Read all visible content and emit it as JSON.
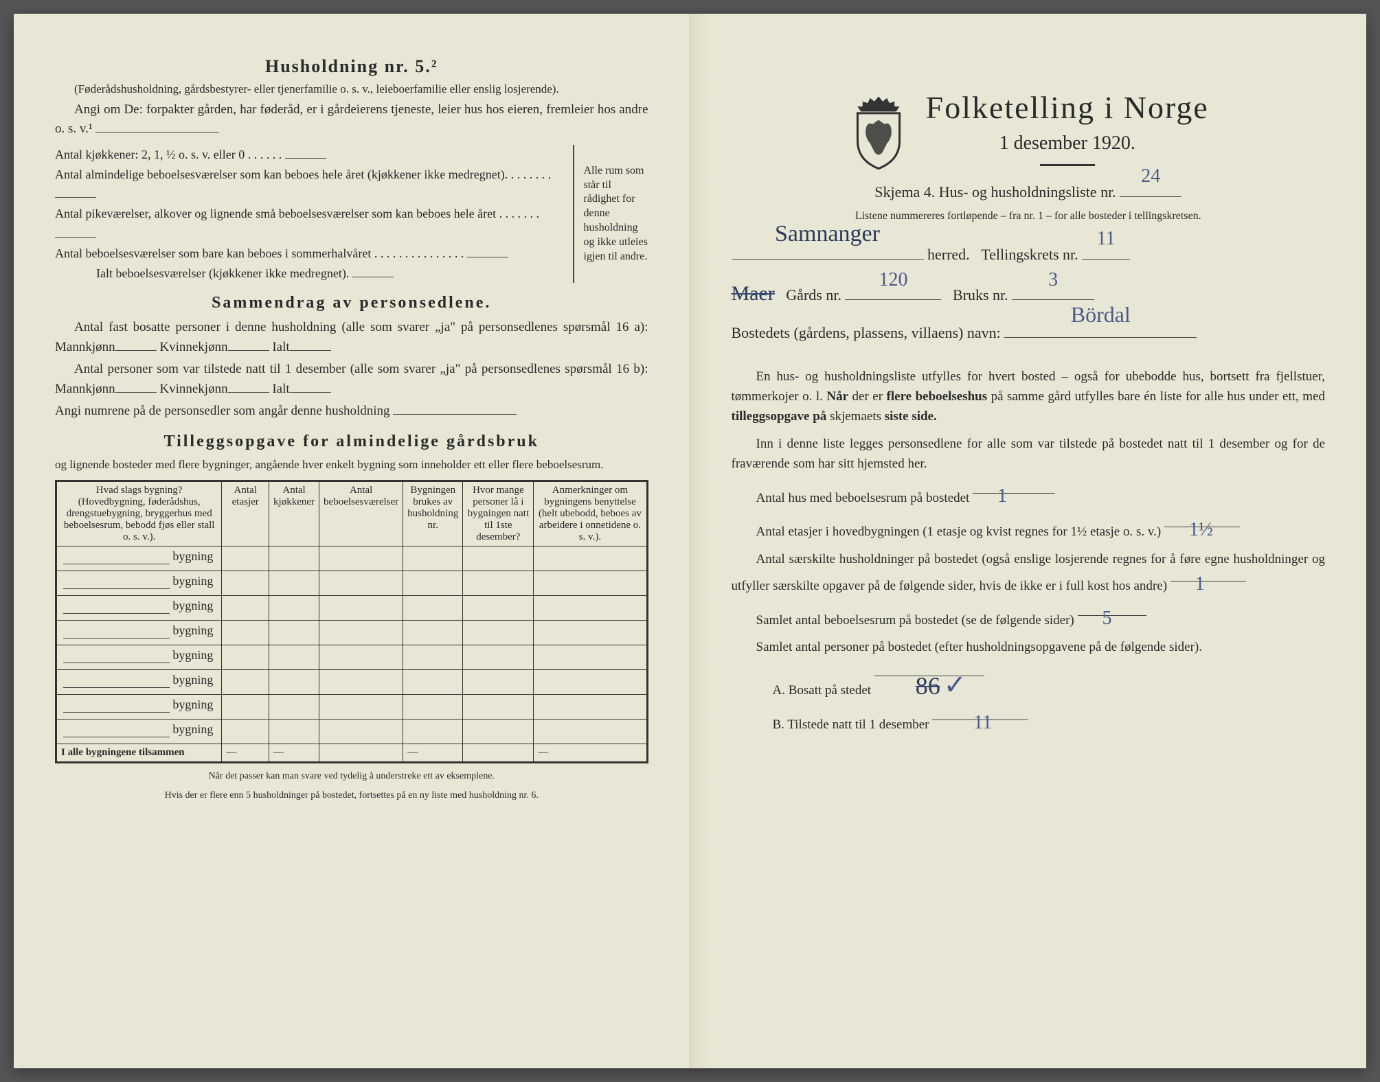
{
  "left": {
    "hh5_title": "Husholdning nr. 5.²",
    "hh5_sub": "(Føderådshusholdning, gårdsbestyrer- eller tjenerfamilie o. s. v., leieboerfamilie eller enslig losjerende).",
    "hh5_angi": "Angi om De: forpakter gården, har føderåd, er i gårdeierens tjeneste, leier hus hos eieren, fremleier hos andre o. s. v.¹",
    "kjokken_label": "Antal kjøkkener: 2, 1, ½ o. s. v. eller 0 . . . . . .",
    "rooms": [
      "Antal almindelige beboelsesværelser som kan beboes hele året (kjøkkener ikke medregnet). . . . . . . .",
      "Antal pikeværelser, alkover og lignende små beboelsesværelser som kan beboes hele året . . . . . . .",
      "Antal beboelsesværelser som bare kan beboes i sommerhalvåret . . . . . . . . . . . . . . .",
      "Ialt beboelsesværelser (kjøkkener ikke medregnet)."
    ],
    "brace_note": "Alle rum som står til rådighet for denne husholdning og ikke utleies igjen til andre.",
    "sammendrag_title": "Sammendrag av personsedlene.",
    "sd_line1": "Antal fast bosatte personer i denne husholdning (alle som svarer „ja\" på personsedlenes spørsmål 16 a): Mannkjønn",
    "sd_kvinne": "Kvinnekjønn",
    "sd_ialt": "Ialt",
    "sd_line2": "Antal personer som var tilstede natt til 1 desember (alle som svarer „ja\" på personsedlenes spørsmål 16 b): Mannkjønn",
    "sd_line3": "Angi numrene på de personsedler som angår denne husholdning",
    "tillegg_title": "Tilleggsopgave for almindelige gårdsbruk",
    "tillegg_sub": "og lignende bosteder med flere bygninger, angående hver enkelt bygning som inneholder ett eller flere beboelsesrum.",
    "table": {
      "headers": [
        "Hvad slags bygning?\n(Hovedbygning, føderådshus, drengstuebygning, bryggerhus med beboelsesrum, bebodd fjøs eller stall o. s. v.).",
        "Antal etasjer",
        "Antal kjøkkener",
        "Antal beboelsesværelser",
        "Bygningen brukes av husholdning nr.",
        "Hvor mange personer lå i bygningen natt til 1ste desember?",
        "Anmerkninger om bygningens benyttelse (helt ubebodd, beboes av arbeidere i onnetidene o. s. v.)."
      ],
      "row_label": "bygning",
      "row_count": 8,
      "total_row": "I alle bygningene tilsammen"
    },
    "footnote1": "Når det passer kan man svare ved tydelig å understreke ett av eksemplene.",
    "footnote2": "Hvis der er flere enn 5 husholdninger på bostedet, fortsettes på en ny liste med husholdning nr. 6."
  },
  "right": {
    "main_title": "Folketelling i Norge",
    "date": "1 desember 1920.",
    "skjema": "Skjema 4.  Hus- og husholdningsliste nr.",
    "skjema_val": "24",
    "listene": "Listene nummereres fortløpende – fra nr. 1 – for alle bosteder i tellingskretsen.",
    "herred_label": "herred.",
    "herred_val": "Samnanger",
    "krets_label": "Tellingskrets nr.",
    "krets_val": "11",
    "gards_strike": "Maer",
    "gards_label": "Gårds nr.",
    "gards_val": "120",
    "bruks_label": "Bruks nr.",
    "bruks_val": "3",
    "bosted_label": "Bostedets (gårdens, plassens, villaens) navn:",
    "bosted_val": "Bördal",
    "para1": "En hus- og husholdningsliste utfylles for hvert bosted – også for ubebodde hus, bortsett fra fjellstuer, tømmerkojer o. l. Når der er flere beboelseshus på samme gård utfylles bare én liste for alle hus under ett, med tilleggsopgave på skjemaets siste side.",
    "para2": "Inn i denne liste legges personsedlene for alle som var tilstede på bostedet natt til 1 desember og for de fraværende som har sitt hjemsted her.",
    "q1": "Antal hus med beboelsesrum på bostedet",
    "q1_val": "1",
    "q2": "Antal etasjer i hovedbygningen (1 etasje og kvist regnes for 1½ etasje o. s. v.)",
    "q2_val": "1½",
    "q3": "Antal særskilte husholdninger på bostedet (også enslige losjerende regnes for å føre egne husholdninger og utfyller særskilte opgaver på de følgende sider, hvis de ikke er i full kost hos andre)",
    "q3_val": "1",
    "q4": "Samlet antal beboelsesrum på bostedet (se de følgende sider)",
    "q4_val": "5",
    "q5": "Samlet antal personer på bostedet (efter husholdningsopgavene på de følgende sider).",
    "qA": "A.  Bosatt på stedet",
    "qA_val_strike": "86",
    "qA_check": "✓",
    "qB": "B.  Tilstede natt til 1 desember",
    "qB_val": "11"
  },
  "colors": {
    "paper": "#e8e6d4",
    "ink": "#2a2a2a",
    "handwriting": "#4a5a8a"
  }
}
